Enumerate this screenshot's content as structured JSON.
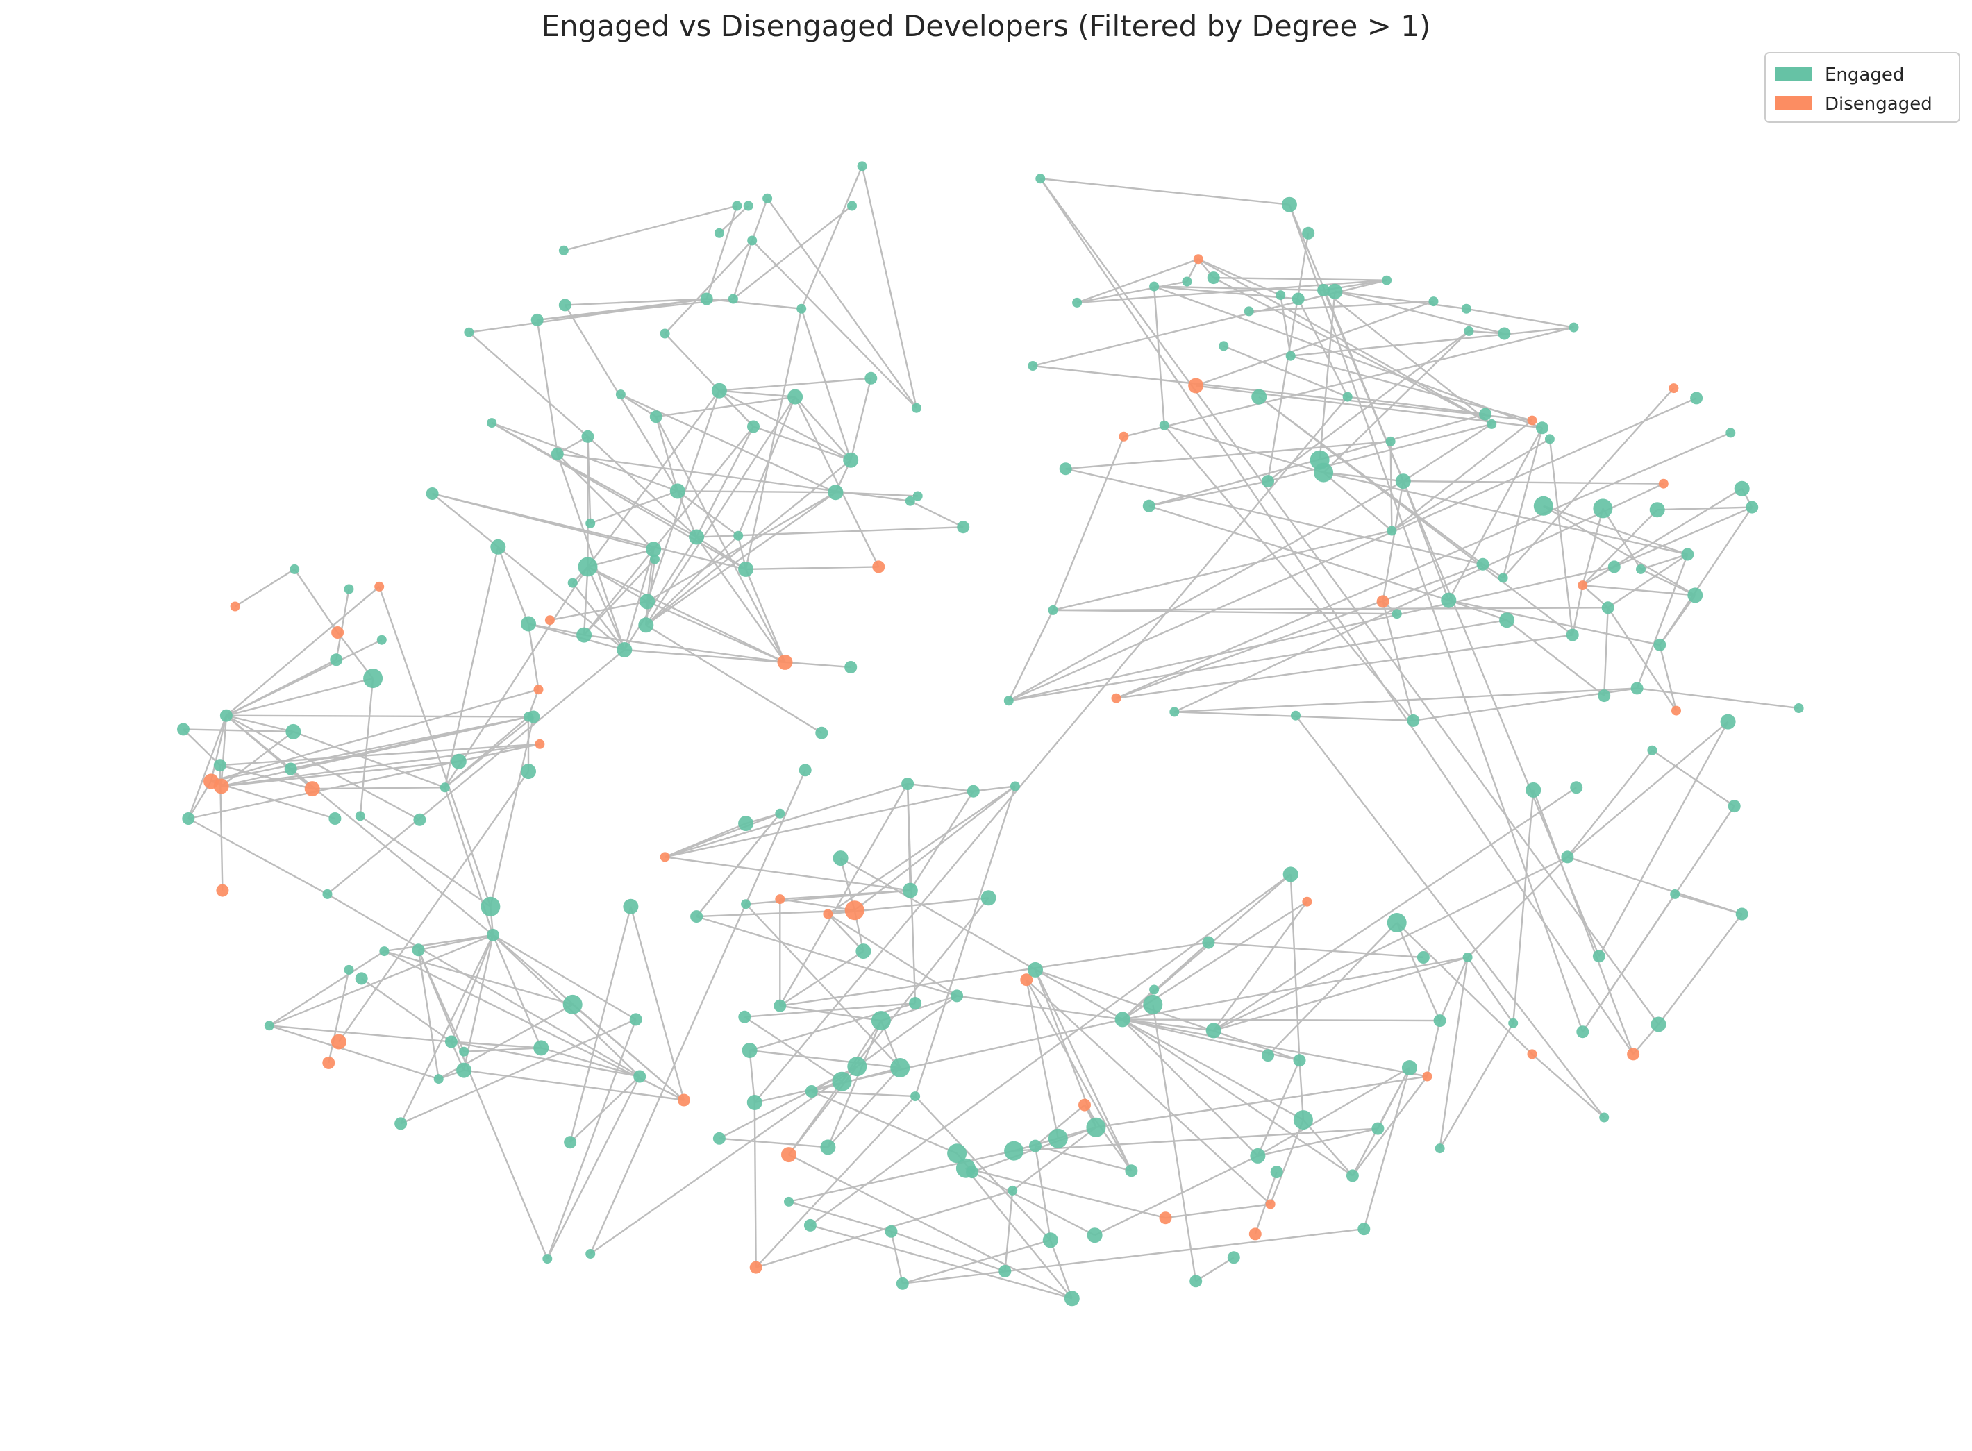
{
  "title": "Engaged vs Disengaged Developers (Filtered by Degree > 1)",
  "legend": {
    "placement": "top-right",
    "items": [
      {
        "label": "Engaged",
        "color": "#66c2a5"
      },
      {
        "label": "Disengaged",
        "color": "#fc8d62"
      }
    ]
  },
  "colors": {
    "engaged": "#66c2a5",
    "disengaged": "#fc8d62",
    "edge": "#bdbdbd"
  }
}
